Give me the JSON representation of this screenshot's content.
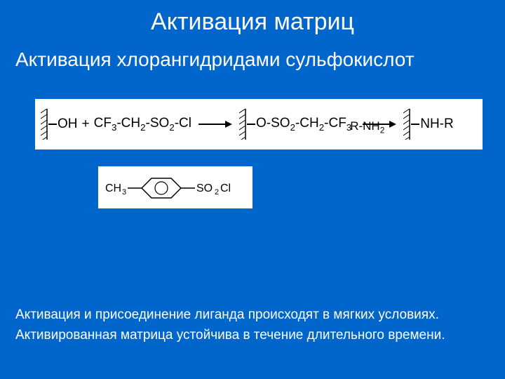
{
  "title": "Активация матриц",
  "subtitle": "Активация хлорангидридами сульфокислот",
  "reaction": {
    "bg": "#ffffff",
    "text_color": "#000000",
    "hatch_color": "#000000",
    "reagent1_prefix": "OH",
    "plus": "+",
    "reagent2": "CF₃-CH₂-SO₂-Cl",
    "intermediate": "O-SO₂-CH₂-CF₃",
    "over_arrow2": "R-NH₂",
    "product": "NH-R",
    "arrow1_width": 38,
    "arrow2_width": 38
  },
  "tosyl": {
    "left_label": "CH₃",
    "right_label": "SO₂Cl",
    "ring_stroke": "#000000"
  },
  "notes_line1": "Активация  и присоединение лиганда происходят в мягких условиях.",
  "notes_line2": "Активированная матрица устойчива в течение длительного времени.",
  "colors": {
    "page_bg": "#0066cc",
    "text": "#ffffff"
  }
}
